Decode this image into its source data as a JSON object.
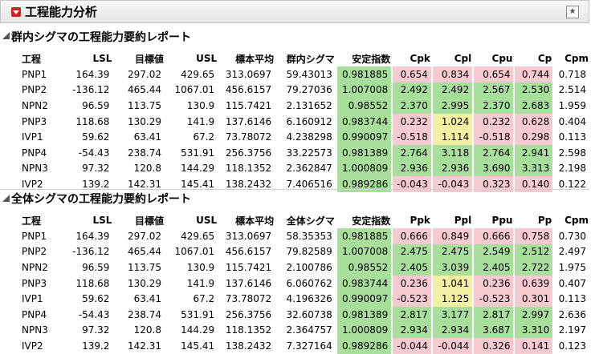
{
  "title": "工程能力分析",
  "sections": [
    {
      "title": "群内シグマの工程能力要約レポート",
      "headers": [
        "工程",
        "LSL",
        "目標値",
        "USL",
        "標本平均",
        "群内シグマ",
        "安定指数",
        "Cpk",
        "Cpl",
        "Cpu",
        "Cp",
        "Cpm"
      ],
      "rows": [
        [
          "PNP1",
          "164.39",
          "297.02",
          "429.65",
          "313.0697",
          "59.43013",
          "0.981885",
          "0.654",
          "0.834",
          "0.654",
          "0.744",
          "0.718"
        ],
        [
          "PNP2",
          "-136.12",
          "465.44",
          "1067.01",
          "456.6157",
          "79.27036",
          "1.007008",
          "2.492",
          "2.492",
          "2.567",
          "2.530",
          "2.514"
        ],
        [
          "NPN2",
          "96.59",
          "113.75",
          "130.9",
          "115.7421",
          "2.131652",
          "0.98552",
          "2.370",
          "2.995",
          "2.370",
          "2.683",
          "1.959"
        ],
        [
          "PNP3",
          "118.68",
          "130.29",
          "141.9",
          "137.6146",
          "6.160912",
          "0.983744",
          "0.232",
          "1.024",
          "0.232",
          "0.628",
          "0.404"
        ],
        [
          "IVP1",
          "59.62",
          "63.41",
          "67.2",
          "73.78072",
          "4.238298",
          "0.990097",
          "-0.518",
          "1.114",
          "-0.518",
          "0.298",
          "0.113"
        ],
        [
          "PNP4",
          "-54.43",
          "238.74",
          "531.91",
          "256.3756",
          "33.22573",
          "0.981389",
          "2.764",
          "3.118",
          "2.764",
          "2.941",
          "2.598"
        ],
        [
          "NPN3",
          "97.32",
          "120.8",
          "144.29",
          "118.1352",
          "2.362847",
          "1.000809",
          "2.936",
          "2.936",
          "3.690",
          "3.313",
          "2.198"
        ],
        [
          "IVP2",
          "139.2",
          "142.31",
          "145.41",
          "138.2432",
          "7.406516",
          "0.989286",
          "-0.043",
          "-0.043",
          "0.323",
          "0.140",
          "0.122"
        ]
      ],
      "colors": [
        [
          "",
          "",
          "",
          "",
          "",
          "",
          "g",
          "r",
          "r",
          "r",
          "r",
          ""
        ],
        [
          "",
          "",
          "",
          "",
          "",
          "",
          "g",
          "g",
          "g",
          "g",
          "g",
          ""
        ],
        [
          "",
          "",
          "",
          "",
          "",
          "",
          "g",
          "g",
          "g",
          "g",
          "g",
          ""
        ],
        [
          "",
          "",
          "",
          "",
          "",
          "",
          "g",
          "r",
          "y",
          "r",
          "r",
          ""
        ],
        [
          "",
          "",
          "",
          "",
          "",
          "",
          "g",
          "r",
          "y",
          "r",
          "r",
          ""
        ],
        [
          "",
          "",
          "",
          "",
          "",
          "",
          "g",
          "g",
          "g",
          "g",
          "g",
          ""
        ],
        [
          "",
          "",
          "",
          "",
          "",
          "",
          "g",
          "g",
          "g",
          "g",
          "g",
          ""
        ],
        [
          "",
          "",
          "",
          "",
          "",
          "",
          "g",
          "r",
          "r",
          "r",
          "r",
          ""
        ]
      ]
    },
    {
      "title": "全体シグマの工程能力要約レポート",
      "headers": [
        "工程",
        "LSL",
        "目標値",
        "USL",
        "標本平均",
        "全体シグマ",
        "安定指数",
        "Ppk",
        "Ppl",
        "Ppu",
        "Pp",
        "Cpm"
      ],
      "rows": [
        [
          "PNP1",
          "164.39",
          "297.02",
          "429.65",
          "313.0697",
          "58.35353",
          "0.981885",
          "0.666",
          "0.849",
          "0.666",
          "0.758",
          "0.730"
        ],
        [
          "PNP2",
          "-136.12",
          "465.44",
          "1067.01",
          "456.6157",
          "79.82589",
          "1.007008",
          "2.475",
          "2.475",
          "2.549",
          "2.512",
          "2.497"
        ],
        [
          "NPN2",
          "96.59",
          "113.75",
          "130.9",
          "115.7421",
          "2.100786",
          "0.98552",
          "2.405",
          "3.039",
          "2.405",
          "2.722",
          "1.975"
        ],
        [
          "PNP3",
          "118.68",
          "130.29",
          "141.9",
          "137.6146",
          "6.060762",
          "0.983744",
          "0.236",
          "1.041",
          "0.236",
          "0.639",
          "0.407"
        ],
        [
          "IVP1",
          "59.62",
          "63.41",
          "67.2",
          "73.78072",
          "4.196326",
          "0.990097",
          "-0.523",
          "1.125",
          "-0.523",
          "0.301",
          "0.113"
        ],
        [
          "PNP4",
          "-54.43",
          "238.74",
          "531.91",
          "256.3756",
          "32.60738",
          "0.981389",
          "2.817",
          "3.177",
          "2.817",
          "2.997",
          "2.636"
        ],
        [
          "NPN3",
          "97.32",
          "120.8",
          "144.29",
          "118.1352",
          "2.364757",
          "1.000809",
          "2.934",
          "2.934",
          "3.687",
          "3.310",
          "2.197"
        ],
        [
          "IVP2",
          "139.2",
          "142.31",
          "145.41",
          "138.2432",
          "7.327164",
          "0.989286",
          "-0.044",
          "-0.044",
          "0.326",
          "0.141",
          "0.123"
        ]
      ],
      "colors": [
        [
          "",
          "",
          "",
          "",
          "",
          "",
          "g",
          "r",
          "r",
          "r",
          "r",
          ""
        ],
        [
          "",
          "",
          "",
          "",
          "",
          "",
          "g",
          "g",
          "g",
          "g",
          "g",
          ""
        ],
        [
          "",
          "",
          "",
          "",
          "",
          "",
          "g",
          "g",
          "g",
          "g",
          "g",
          ""
        ],
        [
          "",
          "",
          "",
          "",
          "",
          "",
          "g",
          "r",
          "y",
          "r",
          "r",
          ""
        ],
        [
          "",
          "",
          "",
          "",
          "",
          "",
          "g",
          "r",
          "y",
          "r",
          "r",
          ""
        ],
        [
          "",
          "",
          "",
          "",
          "",
          "",
          "g",
          "g",
          "g",
          "g",
          "g",
          ""
        ],
        [
          "",
          "",
          "",
          "",
          "",
          "",
          "g",
          "g",
          "g",
          "g",
          "g",
          ""
        ],
        [
          "",
          "",
          "",
          "",
          "",
          "",
          "g",
          "r",
          "r",
          "r",
          "r",
          ""
        ]
      ]
    }
  ],
  "icons": {
    "disclosure": "red-disclosure-icon",
    "collapse": "collapse-triangle-icon",
    "star": "star-icon"
  },
  "colors_legend": {
    "g": "#a8df9c",
    "r": "#f7c9d0",
    "y": "#f4f0a3"
  }
}
